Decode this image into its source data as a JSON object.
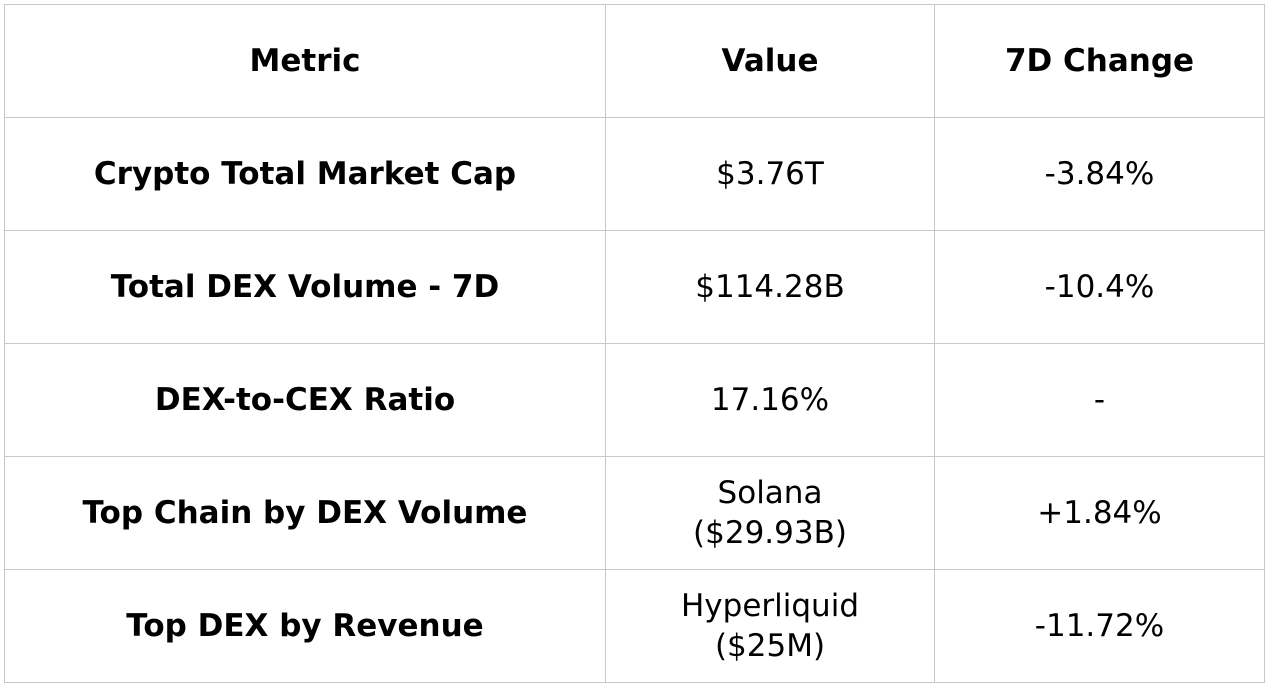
{
  "table": {
    "headers": [
      "Metric",
      "Value",
      "7D Change"
    ],
    "rows": [
      {
        "metric": "Crypto Total Market Cap",
        "value_line1": "$3.76T",
        "value_line2": "",
        "change": "-3.84%"
      },
      {
        "metric": "Total DEX Volume - 7D",
        "value_line1": "$114.28B",
        "value_line2": "",
        "change": "-10.4%"
      },
      {
        "metric": "DEX-to-CEX Ratio",
        "value_line1": "17.16%",
        "value_line2": "",
        "change": "-"
      },
      {
        "metric": "Top Chain by DEX Volume",
        "value_line1": "Solana",
        "value_line2": "($29.93B)",
        "change": "+1.84%"
      },
      {
        "metric": "Top DEX by Revenue",
        "value_line1": "Hyperliquid",
        "value_line2": "($25M)",
        "change": "-11.72%"
      }
    ]
  }
}
